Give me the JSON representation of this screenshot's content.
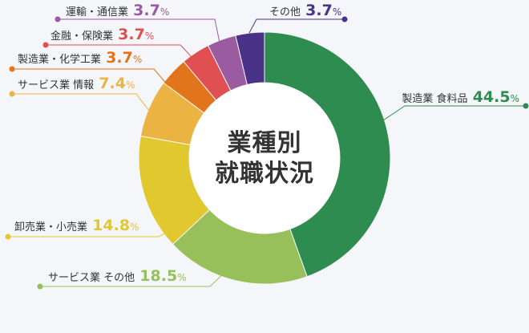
{
  "chart_data": {
    "type": "pie",
    "title": "業種別\n就職状況",
    "unit": "%",
    "slices": [
      {
        "label": "製造業 食料品",
        "value": 44.5,
        "color": "#2e8c50"
      },
      {
        "label": "サービス業 その他",
        "value": 18.5,
        "color": "#97c05a"
      },
      {
        "label": "卸売業・小売業",
        "value": 14.8,
        "color": "#e1c82f"
      },
      {
        "label": "サービス業 情報",
        "value": 7.4,
        "color": "#ebb342"
      },
      {
        "label": "製造業・化学工業",
        "value": 3.7,
        "color": "#e2741b"
      },
      {
        "label": "金融・保険業",
        "value": 3.7,
        "color": "#e04f52"
      },
      {
        "label": "運輸・通信業",
        "value": 3.7,
        "color": "#9a5ba0"
      },
      {
        "label": "その他",
        "value": 3.7,
        "color": "#4a3286"
      }
    ]
  }
}
